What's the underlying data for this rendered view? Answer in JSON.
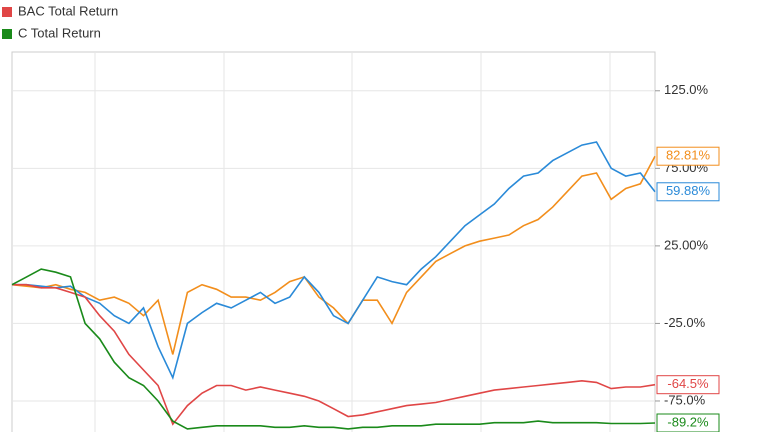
{
  "chart_data": {
    "type": "line",
    "legend": "top-left",
    "grid": true,
    "ylim": [
      -95,
      150
    ],
    "yticks": [
      {
        "value": -75,
        "label": "-75.0%"
      },
      {
        "value": -25,
        "label": "-25.0%"
      },
      {
        "value": 25,
        "label": "25.00%"
      },
      {
        "value": 75,
        "label": "75.00%"
      },
      {
        "value": 125,
        "label": "125.0%"
      }
    ],
    "series": [
      {
        "color": "#f28e1c",
        "values": [
          0,
          -1,
          -2,
          0,
          -3,
          -5,
          -10,
          -8,
          -12,
          -20,
          -10,
          -45,
          -5,
          0,
          -3,
          -8,
          -8,
          -10,
          -5,
          2,
          5,
          -8,
          -15,
          -25,
          -10,
          -10,
          -25,
          -5,
          5,
          15,
          20,
          25,
          28,
          30,
          32,
          38,
          42,
          50,
          60,
          70,
          72,
          55,
          62,
          65,
          82.81
        ],
        "value_labels": [
          null,
          null,
          null,
          null,
          null,
          null,
          null,
          null,
          null,
          null,
          null,
          null,
          null,
          null,
          null,
          null,
          null,
          null,
          null,
          null,
          null,
          null,
          null,
          null,
          null,
          null,
          null,
          null,
          null,
          null,
          null,
          null,
          null,
          null,
          null,
          null,
          null,
          null,
          null,
          null,
          null,
          null,
          null,
          null,
          "82.81%"
        ]
      },
      {
        "color": "#2a8ad8",
        "values": [
          0,
          0,
          -1,
          -2,
          -1,
          -8,
          -12,
          -20,
          -25,
          -15,
          -40,
          -60,
          -25,
          -18,
          -12,
          -15,
          -10,
          -5,
          -12,
          -8,
          5,
          -5,
          -20,
          -25,
          -10,
          5,
          2,
          0,
          10,
          18,
          28,
          38,
          45,
          52,
          62,
          70,
          72,
          80,
          85,
          90,
          92,
          75,
          70,
          72,
          59.88
        ],
        "value_labels": [
          null,
          null,
          null,
          null,
          null,
          null,
          null,
          null,
          null,
          null,
          null,
          null,
          null,
          null,
          null,
          null,
          null,
          null,
          null,
          null,
          null,
          null,
          null,
          null,
          null,
          null,
          null,
          null,
          null,
          null,
          null,
          null,
          null,
          null,
          null,
          null,
          null,
          null,
          null,
          null,
          null,
          null,
          null,
          null,
          "59.88%"
        ]
      },
      {
        "name": "BAC Total Return",
        "color": "#e04646",
        "values": [
          0,
          0,
          -2,
          -2,
          -5,
          -8,
          -20,
          -30,
          -45,
          -55,
          -65,
          -90,
          -78,
          -70,
          -65,
          -65,
          -68,
          -66,
          -68,
          -70,
          -72,
          -75,
          -80,
          -85,
          -84,
          -82,
          -80,
          -78,
          -77,
          -76,
          -74,
          -72,
          -70,
          -68,
          -67,
          -66,
          -65,
          -64,
          -63,
          -62,
          -63,
          -67,
          -66,
          -66,
          -64.5
        ],
        "value_labels": [
          null,
          null,
          null,
          null,
          null,
          null,
          null,
          null,
          null,
          null,
          null,
          null,
          null,
          null,
          null,
          null,
          null,
          null,
          null,
          null,
          null,
          null,
          null,
          null,
          null,
          null,
          null,
          null,
          null,
          null,
          null,
          null,
          null,
          null,
          null,
          null,
          null,
          null,
          null,
          null,
          null,
          null,
          null,
          null,
          "-64.5%"
        ]
      },
      {
        "name": "C Total Return",
        "color": "#1a8a1a",
        "values": [
          0,
          5,
          10,
          8,
          5,
          -25,
          -35,
          -50,
          -60,
          -65,
          -75,
          -88,
          -93,
          -92,
          -91,
          -91,
          -91,
          -91,
          -92,
          -92,
          -91,
          -92,
          -92,
          -93,
          -92,
          -92,
          -91,
          -91,
          -91,
          -90,
          -90,
          -90,
          -90,
          -89,
          -89,
          -89,
          -88,
          -89,
          -89,
          -89,
          -89,
          -89.5,
          -89.5,
          -89.5,
          -89.2
        ],
        "value_labels": [
          null,
          null,
          null,
          null,
          null,
          null,
          null,
          null,
          null,
          null,
          null,
          null,
          null,
          null,
          null,
          null,
          null,
          null,
          null,
          null,
          null,
          null,
          null,
          null,
          null,
          null,
          null,
          null,
          null,
          null,
          null,
          null,
          null,
          null,
          null,
          null,
          null,
          null,
          null,
          null,
          null,
          null,
          null,
          null,
          "-89.2%"
        ]
      }
    ]
  }
}
